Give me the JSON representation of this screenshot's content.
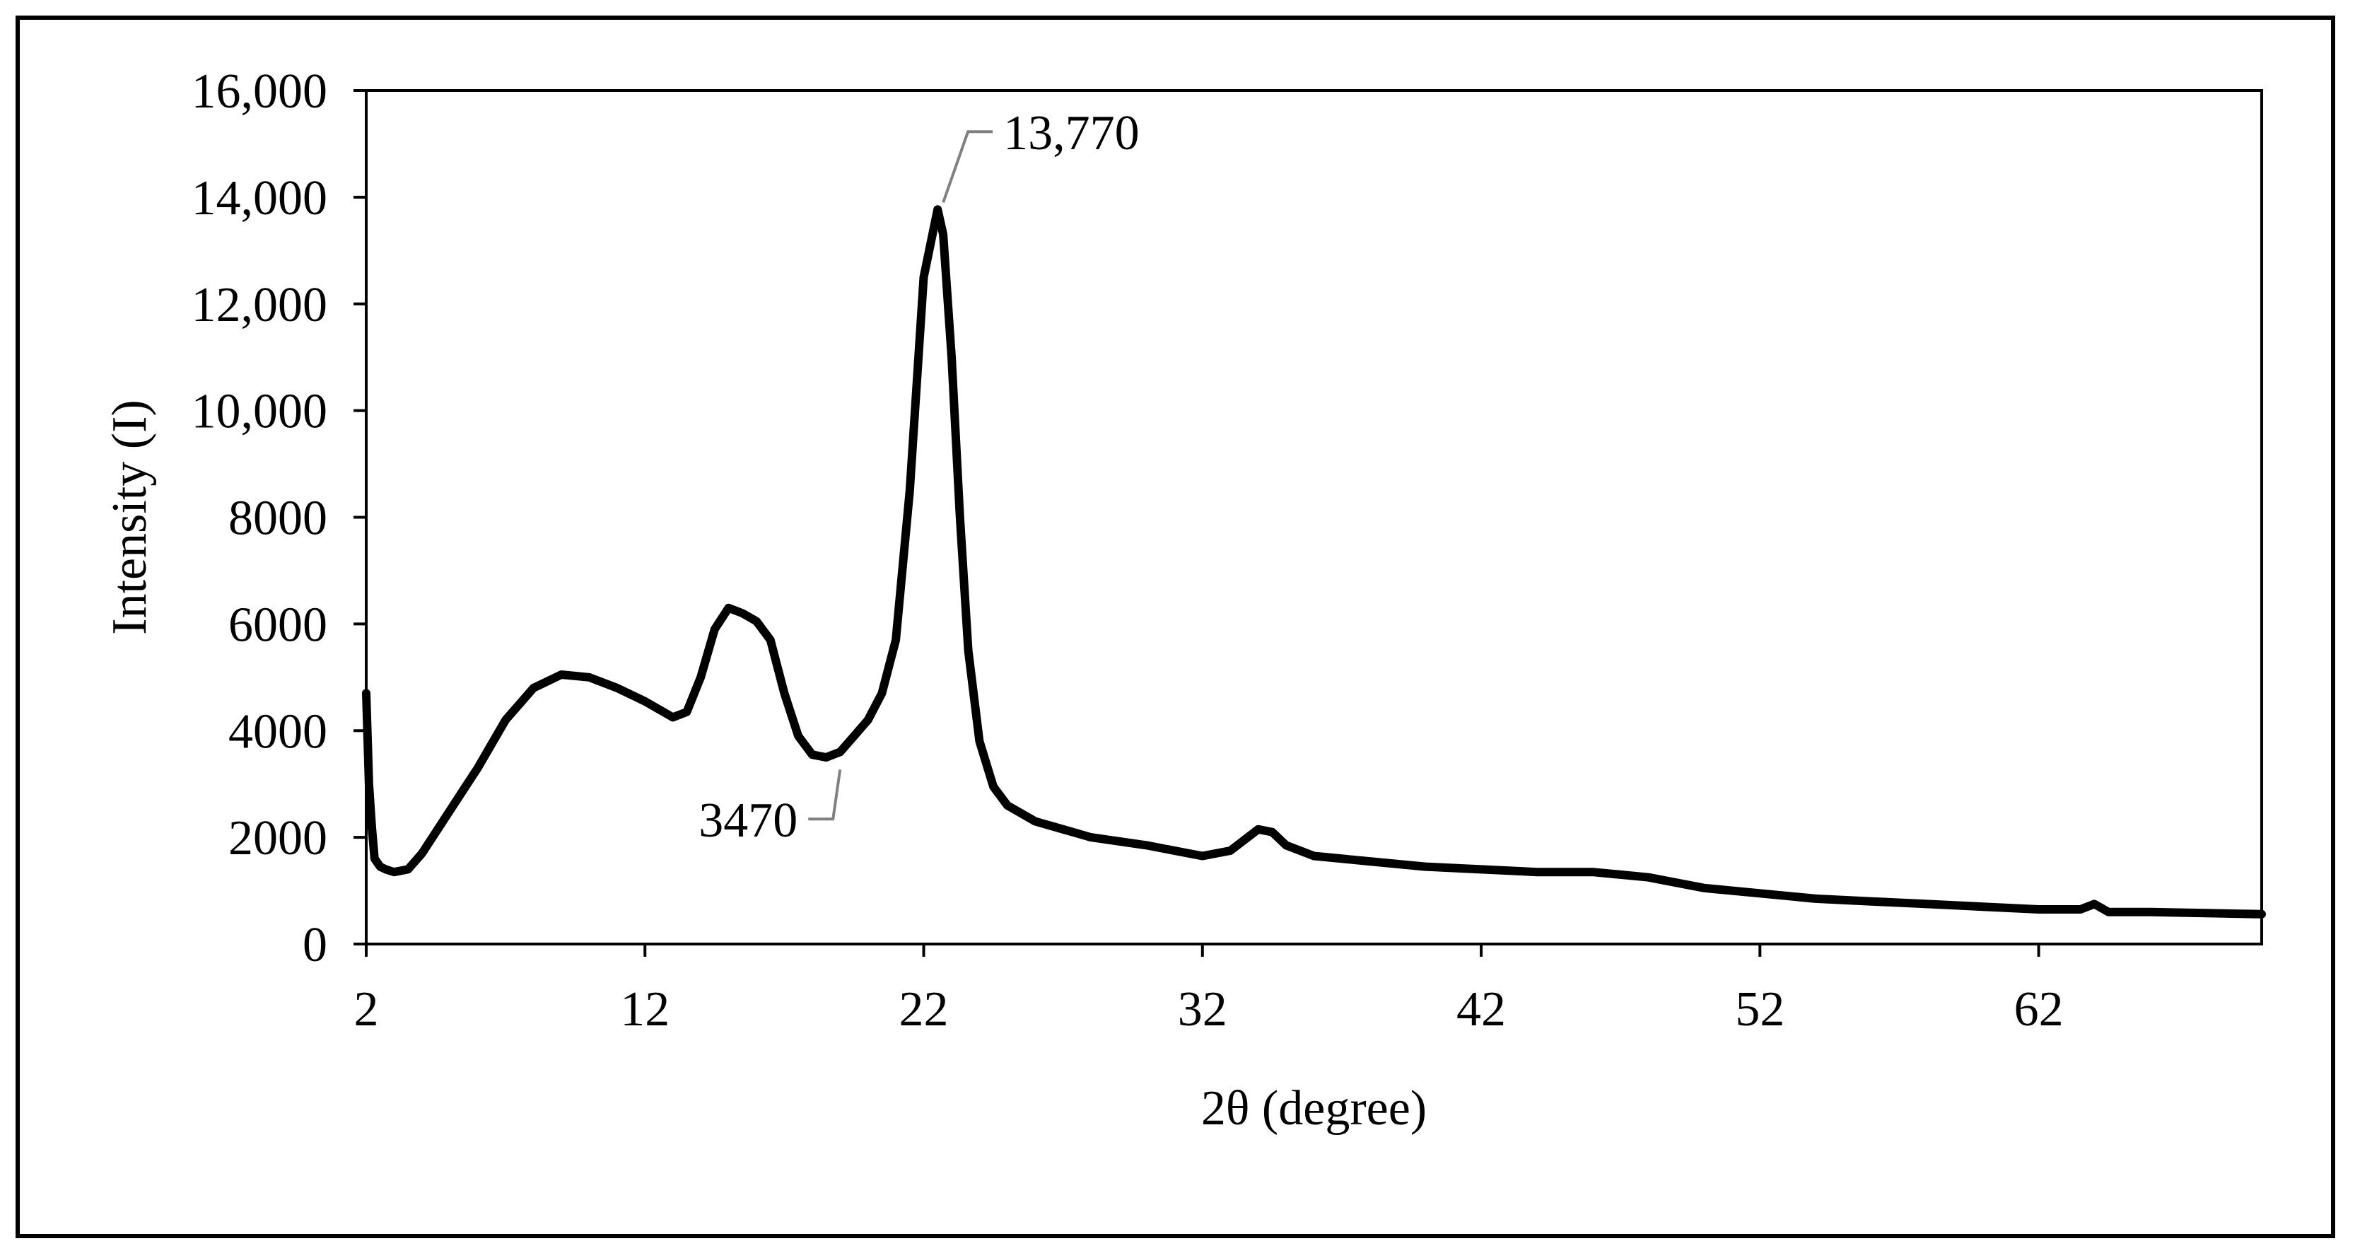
{
  "chart_data": {
    "type": "line",
    "title": "",
    "xlabel": "2θ (degree)",
    "ylabel": "Intensity (I)",
    "xlim": [
      2,
      70
    ],
    "ylim": [
      0,
      16000
    ],
    "x_ticks": [
      2,
      12,
      22,
      32,
      42,
      52,
      62
    ],
    "x_tick_labels": [
      "2",
      "12",
      "22",
      "32",
      "42",
      "52",
      "62"
    ],
    "y_ticks": [
      0,
      2000,
      4000,
      6000,
      8000,
      10000,
      12000,
      14000,
      16000
    ],
    "y_tick_labels": [
      "0",
      "2000",
      "4000",
      "6000",
      "8000",
      "10,000",
      "12,000",
      "14,000",
      "16,000"
    ],
    "grid": false,
    "legend": "none",
    "line_color": "#000000",
    "leader_color": "#808080",
    "series": [
      {
        "x": [
          2.0,
          2.1,
          2.2,
          2.3,
          2.5,
          2.7,
          3.0,
          3.5,
          4.0,
          4.5,
          5.0,
          5.5,
          6.0,
          7.0,
          8.0,
          9.0,
          10.0,
          11.0,
          12.0,
          13.0,
          13.5,
          14.0,
          14.5,
          15.0,
          15.5,
          16.0,
          16.5,
          17.0,
          17.5,
          18.0,
          18.5,
          19.0,
          19.5,
          20.0,
          20.5,
          21.0,
          21.5,
          22.0,
          22.5,
          22.7,
          23.0,
          23.3,
          23.6,
          24.0,
          24.5,
          25.0,
          26.0,
          27.0,
          28.0,
          30.0,
          31.0,
          32.0,
          33.0,
          34.0,
          34.5,
          35.0,
          36.0,
          38.0,
          40.0,
          42.0,
          44.0,
          46.0,
          47.0,
          48.0,
          50.0,
          52.0,
          54.0,
          56.0,
          58.0,
          60.0,
          62.0,
          63.5,
          64.0,
          64.5,
          66.0,
          68.0,
          70.0
        ],
        "y": [
          4700,
          3000,
          2200,
          1600,
          1450,
          1400,
          1350,
          1400,
          1700,
          2100,
          2500,
          2900,
          3300,
          4200,
          4800,
          5050,
          5000,
          4800,
          4550,
          4250,
          4350,
          5000,
          5900,
          6300,
          6200,
          6050,
          5700,
          4700,
          3900,
          3550,
          3500,
          3600,
          3900,
          4200,
          4700,
          5700,
          8500,
          12500,
          13770,
          13300,
          11000,
          8000,
          5500,
          3800,
          2950,
          2600,
          2300,
          2150,
          2000,
          1850,
          1750,
          1650,
          1750,
          2150,
          2100,
          1850,
          1650,
          1550,
          1450,
          1400,
          1350,
          1350,
          1300,
          1250,
          1050,
          950,
          850,
          800,
          750,
          700,
          650,
          650,
          750,
          600,
          600,
          580,
          560
        ]
      }
    ],
    "annotations": [
      {
        "text": "13,770",
        "x": 22.7,
        "y": 13770
      },
      {
        "text": "3470",
        "x": 19.0,
        "y": 3470
      }
    ]
  }
}
